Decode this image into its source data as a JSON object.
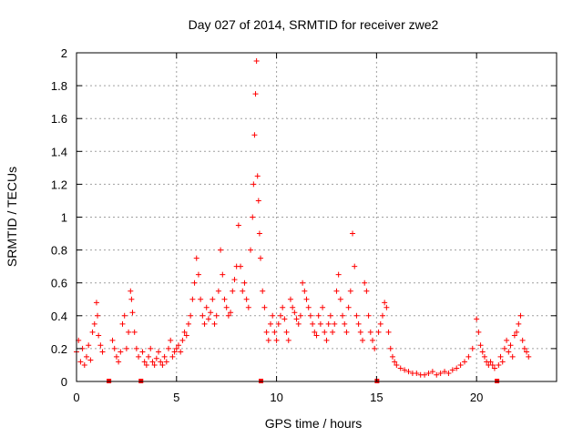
{
  "chart_data": {
    "type": "scatter",
    "title": "Day 027 of 2014, SRMTID for receiver zwe2",
    "xlabel": "GPS time / hours",
    "ylabel": "SRMTID / TECUs",
    "xlim": [
      0,
      24
    ],
    "ylim": [
      0,
      2
    ],
    "grid": true,
    "marker": "plus",
    "color": "#ff0000",
    "xticks": [
      0,
      5,
      10,
      15,
      20
    ],
    "xtick_labels": [
      "0",
      "5",
      "10",
      "15",
      "20"
    ],
    "yticks": [
      0,
      0.2,
      0.4,
      0.6,
      0.8,
      1.0,
      1.2,
      1.4,
      1.6,
      1.8,
      2.0
    ],
    "ytick_labels": [
      "0",
      "0.2",
      "0.4",
      "0.6",
      "0.8",
      "1",
      "1.2",
      "1.4",
      "1.6",
      "1.8",
      "2"
    ],
    "gap_markers_x": [
      1.6,
      3.2,
      9.2,
      15.0,
      21.0
    ],
    "series": [
      {
        "name": "zwe2",
        "x": [
          0.0,
          0.1,
          0.2,
          0.3,
          0.4,
          0.5,
          0.6,
          0.7,
          0.8,
          0.9,
          1.0,
          1.05,
          1.1,
          1.2,
          1.3,
          1.8,
          1.9,
          2.0,
          2.1,
          2.2,
          2.3,
          2.4,
          2.5,
          2.6,
          2.7,
          2.75,
          2.8,
          2.9,
          3.0,
          3.1,
          3.3,
          3.4,
          3.5,
          3.6,
          3.7,
          3.8,
          3.9,
          4.0,
          4.1,
          4.2,
          4.3,
          4.4,
          4.5,
          4.6,
          4.7,
          4.8,
          4.9,
          5.0,
          5.1,
          5.2,
          5.3,
          5.4,
          5.5,
          5.6,
          5.7,
          5.8,
          5.9,
          6.0,
          6.1,
          6.2,
          6.3,
          6.4,
          6.5,
          6.6,
          6.7,
          6.8,
          6.9,
          7.0,
          7.1,
          7.2,
          7.3,
          7.4,
          7.5,
          7.6,
          7.7,
          7.8,
          7.9,
          8.0,
          8.1,
          8.2,
          8.3,
          8.4,
          8.5,
          8.6,
          8.7,
          8.8,
          8.85,
          8.9,
          8.95,
          9.0,
          9.05,
          9.1,
          9.15,
          9.2,
          9.3,
          9.4,
          9.5,
          9.6,
          9.7,
          9.8,
          9.9,
          10.0,
          10.1,
          10.2,
          10.3,
          10.4,
          10.5,
          10.6,
          10.7,
          10.8,
          10.9,
          11.0,
          11.1,
          11.2,
          11.3,
          11.4,
          11.5,
          11.6,
          11.7,
          11.8,
          11.9,
          12.0,
          12.1,
          12.2,
          12.3,
          12.4,
          12.5,
          12.6,
          12.7,
          12.8,
          12.9,
          13.0,
          13.1,
          13.2,
          13.3,
          13.4,
          13.5,
          13.6,
          13.7,
          13.8,
          13.9,
          14.0,
          14.1,
          14.2,
          14.3,
          14.4,
          14.5,
          14.6,
          14.7,
          14.8,
          14.9,
          15.1,
          15.2,
          15.3,
          15.4,
          15.5,
          15.6,
          15.7,
          15.8,
          15.9,
          16.0,
          16.2,
          16.4,
          16.6,
          16.8,
          17.0,
          17.2,
          17.4,
          17.6,
          17.8,
          18.0,
          18.2,
          18.4,
          18.6,
          18.8,
          19.0,
          19.2,
          19.4,
          19.6,
          19.8,
          20.0,
          20.1,
          20.2,
          20.3,
          20.4,
          20.5,
          20.6,
          20.7,
          20.8,
          20.9,
          21.1,
          21.2,
          21.3,
          21.4,
          21.5,
          21.6,
          21.7,
          21.8,
          21.9,
          22.0,
          22.1,
          22.2,
          22.3,
          22.4,
          22.5,
          22.6
        ],
        "y": [
          0.18,
          0.25,
          0.12,
          0.2,
          0.1,
          0.15,
          0.22,
          0.13,
          0.3,
          0.35,
          0.48,
          0.4,
          0.28,
          0.22,
          0.18,
          0.25,
          0.2,
          0.15,
          0.12,
          0.18,
          0.35,
          0.4,
          0.2,
          0.3,
          0.55,
          0.5,
          0.42,
          0.3,
          0.2,
          0.15,
          0.18,
          0.12,
          0.1,
          0.15,
          0.2,
          0.12,
          0.1,
          0.14,
          0.18,
          0.12,
          0.1,
          0.15,
          0.12,
          0.2,
          0.25,
          0.15,
          0.18,
          0.2,
          0.22,
          0.18,
          0.25,
          0.3,
          0.28,
          0.35,
          0.4,
          0.5,
          0.6,
          0.75,
          0.65,
          0.5,
          0.4,
          0.35,
          0.45,
          0.38,
          0.42,
          0.5,
          0.35,
          0.4,
          0.55,
          0.8,
          0.65,
          0.5,
          0.45,
          0.4,
          0.42,
          0.55,
          0.62,
          0.7,
          0.95,
          0.7,
          0.55,
          0.6,
          0.5,
          0.45,
          0.8,
          1.0,
          1.2,
          1.5,
          1.75,
          1.95,
          1.25,
          1.1,
          0.9,
          0.75,
          0.55,
          0.45,
          0.3,
          0.25,
          0.35,
          0.4,
          0.3,
          0.25,
          0.35,
          0.4,
          0.45,
          0.38,
          0.3,
          0.25,
          0.5,
          0.45,
          0.42,
          0.38,
          0.35,
          0.4,
          0.6,
          0.55,
          0.5,
          0.45,
          0.4,
          0.35,
          0.3,
          0.28,
          0.4,
          0.35,
          0.45,
          0.3,
          0.25,
          0.35,
          0.4,
          0.3,
          0.35,
          0.55,
          0.65,
          0.5,
          0.4,
          0.35,
          0.3,
          0.45,
          0.55,
          0.9,
          0.7,
          0.4,
          0.35,
          0.3,
          0.25,
          0.6,
          0.55,
          0.4,
          0.3,
          0.25,
          0.2,
          0.3,
          0.35,
          0.4,
          0.48,
          0.45,
          0.3,
          0.2,
          0.15,
          0.12,
          0.1,
          0.08,
          0.07,
          0.06,
          0.05,
          0.05,
          0.04,
          0.04,
          0.05,
          0.06,
          0.04,
          0.05,
          0.06,
          0.05,
          0.07,
          0.08,
          0.1,
          0.12,
          0.15,
          0.2,
          0.38,
          0.3,
          0.22,
          0.18,
          0.15,
          0.12,
          0.1,
          0.12,
          0.1,
          0.08,
          0.1,
          0.15,
          0.12,
          0.2,
          0.25,
          0.18,
          0.22,
          0.15,
          0.28,
          0.3,
          0.35,
          0.4,
          0.25,
          0.2,
          0.18,
          0.15
        ]
      }
    ]
  }
}
